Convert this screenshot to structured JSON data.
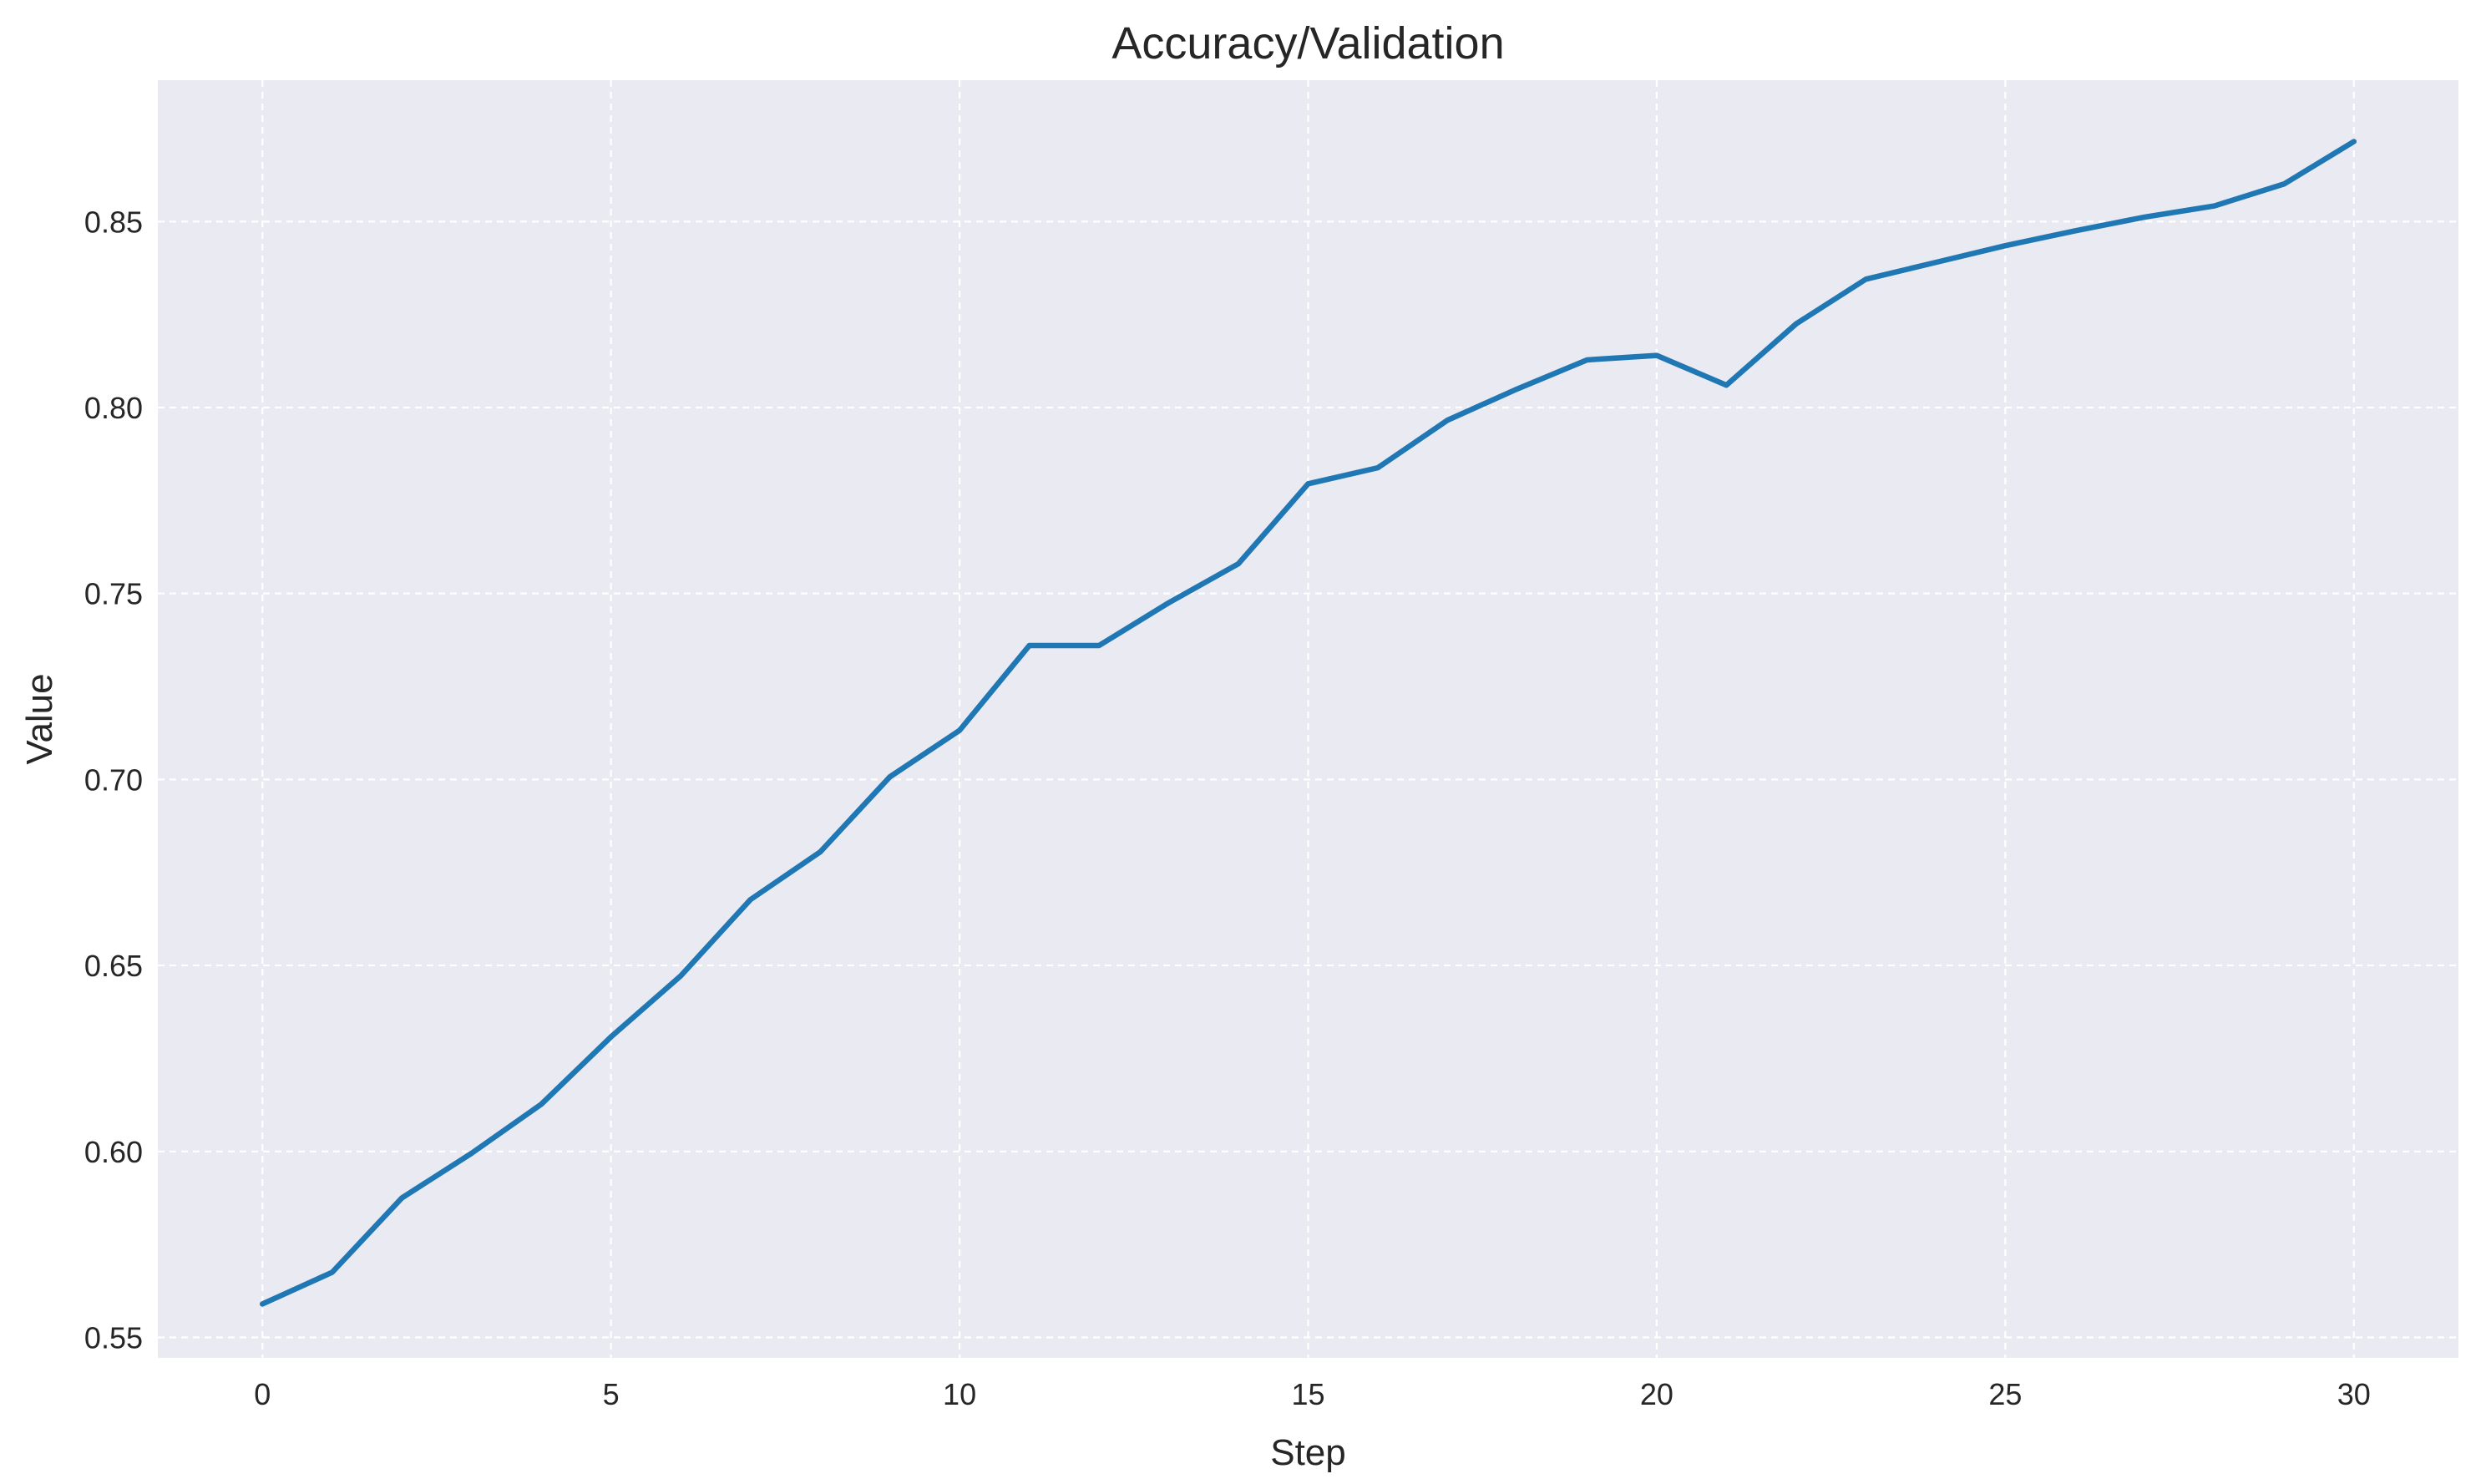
{
  "chart_data": {
    "type": "line",
    "title": "Accuracy/Validation",
    "xlabel": "Step",
    "ylabel": "Value",
    "xlim": [
      -1.5,
      31.5
    ],
    "ylim": [
      0.5445,
      0.888
    ],
    "xticks": [
      0,
      5,
      10,
      15,
      20,
      25,
      30
    ],
    "xtick_labels": [
      "0",
      "5",
      "10",
      "15",
      "20",
      "25",
      "30"
    ],
    "yticks": [
      0.55,
      0.6,
      0.65,
      0.7,
      0.75,
      0.8,
      0.85
    ],
    "ytick_labels": [
      "0.55",
      "0.60",
      "0.65",
      "0.70",
      "0.75",
      "0.80",
      "0.85"
    ],
    "grid": true,
    "legend": "none",
    "colors": {
      "background": "#eaeaf2",
      "grid": "#ffffff",
      "line": "#1f77b4",
      "text": "#262626"
    },
    "series": [
      {
        "x": [
          0,
          1,
          2,
          3,
          4,
          5,
          6,
          7,
          8,
          9,
          10,
          11,
          12,
          13,
          14,
          15,
          16,
          17,
          18,
          19,
          20,
          21,
          22,
          23,
          24,
          25,
          26,
          27,
          28,
          29,
          30
        ],
        "y": [
          0.559,
          0.5675,
          0.5875,
          0.5995,
          0.6127,
          0.6308,
          0.6472,
          0.6677,
          0.6805,
          0.7007,
          0.7132,
          0.736,
          0.736,
          0.7475,
          0.758,
          0.7795,
          0.7838,
          0.7966,
          0.805,
          0.8128,
          0.814,
          0.806,
          0.8225,
          0.8345,
          0.839,
          0.8435,
          0.8475,
          0.8512,
          0.8542,
          0.8601,
          0.8715
        ]
      }
    ]
  }
}
